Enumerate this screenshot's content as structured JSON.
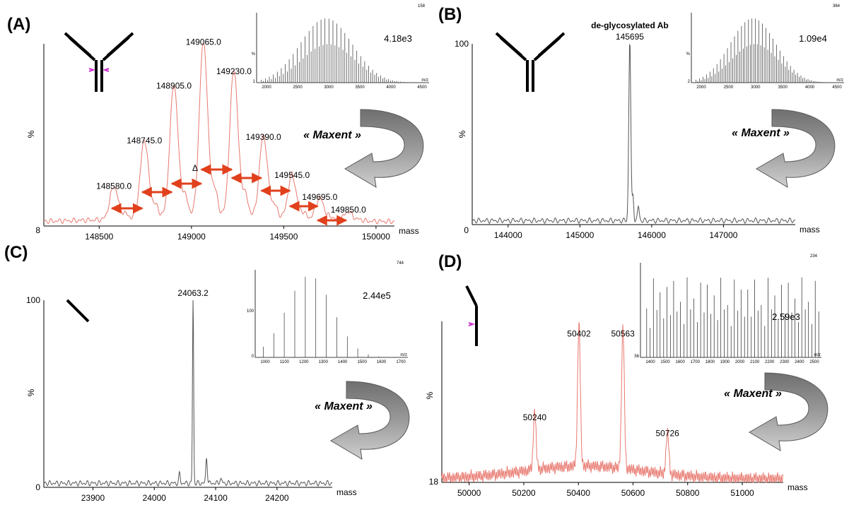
{
  "figure": {
    "maxent_label": "« Maxent »",
    "mass_label": "mass",
    "percent_label": "%"
  },
  "chart_data": [
    {
      "panel": "(A)",
      "type": "line",
      "color": "#e8796f",
      "xlim": [
        148200,
        150100
      ],
      "xticks": [
        148500,
        149000,
        149500,
        150000
      ],
      "xtick_labels": [
        "148500",
        "149000",
        "149500",
        "150000"
      ],
      "ylim_labels": {
        "bottom": "8",
        "top": ""
      },
      "delta_label": "Δ",
      "peaks": [
        {
          "x": 148580.0,
          "y": 18,
          "label": "148580.0"
        },
        {
          "x": 148745.0,
          "y": 43,
          "label": "148745.0"
        },
        {
          "x": 148905.0,
          "y": 73,
          "label": "148905.0"
        },
        {
          "x": 149065.0,
          "y": 97,
          "label": "149065.0"
        },
        {
          "x": 149230.0,
          "y": 81,
          "label": "149230.0"
        },
        {
          "x": 149390.0,
          "y": 45,
          "label": "149390.0"
        },
        {
          "x": 149545.0,
          "y": 24,
          "label": "149545.0"
        },
        {
          "x": 149695.0,
          "y": 12,
          "label": "149695.0"
        },
        {
          "x": 149850.0,
          "y": 5,
          "label": "149850.0"
        }
      ],
      "inset": {
        "intensity": "4.18e3",
        "corner": "158",
        "xticks": [
          "2000",
          "2500",
          "3000",
          "3500",
          "4000",
          "4500"
        ],
        "axis_label": "m/z",
        "ytop": "%",
        "ybottom": "1"
      }
    },
    {
      "panel": "(B)",
      "type": "line",
      "color": "#555555",
      "title": "de-glycosylated Ab",
      "xlim": [
        143500,
        148000
      ],
      "xticks": [
        144000,
        145000,
        146000,
        147000
      ],
      "xtick_labels": [
        "144000",
        "145000",
        "146000",
        "147000"
      ],
      "ylim_labels": {
        "bottom": "0",
        "top": "100"
      },
      "peaks": [
        {
          "x": 145695,
          "y": 100,
          "label": "145695"
        }
      ],
      "inset": {
        "intensity": "1.09e4",
        "corner": "364",
        "xticks": [
          "2000",
          "2500",
          "3000",
          "3500",
          "4000",
          "4500"
        ],
        "axis_label": "m/z",
        "ytop": "%",
        "ybottom": "2"
      }
    },
    {
      "panel": "(C)",
      "type": "line",
      "color": "#555555",
      "xlim": [
        23820,
        24290
      ],
      "xticks": [
        23900,
        24000,
        24100,
        24200
      ],
      "xtick_labels": [
        "23900",
        "24000",
        "24100",
        "24200"
      ],
      "ylim_labels": {
        "bottom": "0",
        "top": "100"
      },
      "peaks": [
        {
          "x": 24063.2,
          "y": 100,
          "label": "24063.2"
        }
      ],
      "inset": {
        "intensity": "2.44e5",
        "corner": "744",
        "xticks": [
          "1000",
          "1100",
          "1200",
          "1300",
          "1400",
          "1500",
          "1600",
          "1700"
        ],
        "axis_label": "m/z",
        "ytop": "100",
        "ybottom": "0"
      }
    },
    {
      "panel": "(D)",
      "type": "line",
      "color": "#e8796f",
      "xlim": [
        49900,
        51150
      ],
      "xticks": [
        50000,
        50200,
        50400,
        50600,
        50800,
        51000
      ],
      "xtick_labels": [
        "50000",
        "50200",
        "50400",
        "50600",
        "50800",
        "51000"
      ],
      "ylim_labels": {
        "bottom": "18",
        "top": ""
      },
      "peaks": [
        {
          "x": 50240,
          "y": 36,
          "label": "50240"
        },
        {
          "x": 50402,
          "y": 88,
          "label": "50402"
        },
        {
          "x": 50563,
          "y": 88,
          "label": "50563"
        },
        {
          "x": 50726,
          "y": 26,
          "label": "50726"
        }
      ],
      "inset": {
        "intensity": "2.59e3",
        "corner": "234",
        "xticks": [
          "1400",
          "1500",
          "1600",
          "1700",
          "1800",
          "1900",
          "2000",
          "2100",
          "2200",
          "2300",
          "2400",
          "2500"
        ],
        "axis_label": "m/z",
        "ytop": "",
        "ybottom": "56"
      }
    }
  ]
}
